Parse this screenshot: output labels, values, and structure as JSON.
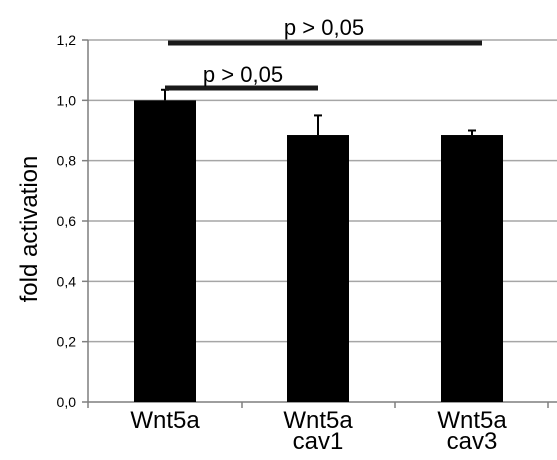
{
  "chart_data": {
    "type": "bar",
    "ylabel": "fold activation",
    "ylim": [
      0,
      1.2
    ],
    "yticks": [
      "0,0",
      "0,2",
      "0,4",
      "0,6",
      "0,8",
      "1,0",
      "1,2"
    ],
    "ytick_values": [
      0,
      0.2,
      0.4,
      0.6,
      0.8,
      1.0,
      1.2
    ],
    "grid": true,
    "categories": [
      {
        "lines": [
          "Wnt5a"
        ]
      },
      {
        "lines": [
          "Wnt5a",
          "cav1"
        ]
      },
      {
        "lines": [
          "Wnt5a",
          "cav3"
        ]
      }
    ],
    "values": [
      1.0,
      0.885,
      0.885
    ],
    "error_upper": [
      0.035,
      0.065,
      0.015
    ],
    "bar_color": "#000000",
    "grid_color": "#a6a6a6",
    "significance": [
      {
        "from": 0,
        "to": 1,
        "label": "p > 0,05"
      },
      {
        "from": 0,
        "to": 2,
        "label": "p > 0,05"
      }
    ]
  }
}
